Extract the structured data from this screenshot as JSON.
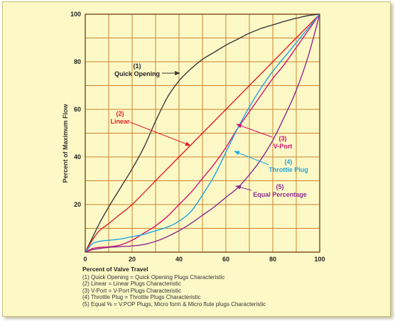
{
  "chart_data": {
    "type": "line",
    "xlabel": "Percent of Valve Travel",
    "ylabel": "Percent of Maximum Flow",
    "xlim": [
      0,
      100
    ],
    "ylim": [
      0,
      100
    ],
    "x_ticks": [
      "0",
      "20",
      "40",
      "60",
      "80",
      "100"
    ],
    "y_ticks": [
      "20",
      "40",
      "60",
      "80",
      "100"
    ],
    "grid": true,
    "grid_step": 10,
    "series": [
      {
        "name": "Quick Opening",
        "annotation_number": "(1)",
        "annotation_label": "Quick Opening",
        "color": "#3a3a3a",
        "x": [
          0,
          3,
          6,
          10,
          15,
          20,
          25,
          30,
          35,
          40,
          45,
          50,
          55,
          60,
          65,
          70,
          75,
          80,
          85,
          90,
          95,
          100
        ],
        "y": [
          0,
          6,
          12,
          19,
          27,
          35,
          44,
          55,
          65,
          72,
          77,
          81,
          84,
          87,
          89.5,
          92,
          94,
          95.5,
          97,
          98.3,
          99.4,
          100
        ]
      },
      {
        "name": "Linear",
        "annotation_number": "(2)",
        "annotation_label": "Linear",
        "color": "#e31f26",
        "x": [
          0,
          3,
          6,
          10,
          15,
          20,
          30,
          40,
          50,
          60,
          70,
          80,
          90,
          100
        ],
        "y": [
          0,
          5,
          9,
          12,
          16,
          20,
          30,
          40,
          50,
          60,
          70,
          80,
          90,
          100
        ]
      },
      {
        "name": "V-Port",
        "annotation_number": "(3)",
        "annotation_label": "V-Port",
        "color": "#d4146f",
        "x": [
          0,
          3,
          6,
          10,
          15,
          20,
          25,
          30,
          35,
          40,
          45,
          50,
          55,
          60,
          65,
          70,
          75,
          80,
          85,
          90,
          95,
          100
        ],
        "y": [
          0,
          1.5,
          2,
          2.2,
          3,
          5,
          8,
          11,
          15,
          20,
          25,
          31,
          37,
          44,
          52,
          59,
          66,
          73,
          79,
          86,
          93,
          100
        ]
      },
      {
        "name": "Throttle Plug",
        "annotation_number": "(4)",
        "annotation_label": "Throttle Plug",
        "color": "#1ea7e0",
        "x": [
          0,
          3,
          6,
          10,
          15,
          20,
          25,
          30,
          35,
          40,
          45,
          50,
          55,
          60,
          65,
          70,
          75,
          80,
          85,
          90,
          95,
          100
        ],
        "y": [
          0,
          3.5,
          4.5,
          5,
          5.5,
          6.5,
          7.5,
          9,
          10.5,
          13,
          17,
          24,
          32,
          42,
          52,
          61,
          69,
          76,
          82,
          88,
          94,
          100
        ]
      },
      {
        "name": "Equal Percentage",
        "annotation_number": "(5)",
        "annotation_label": "Equal Percentage",
        "color": "#8b2a8f",
        "x": [
          0,
          3,
          6,
          10,
          15,
          20,
          25,
          30,
          35,
          40,
          45,
          50,
          55,
          60,
          65,
          70,
          75,
          80,
          85,
          90,
          95,
          100
        ],
        "y": [
          0,
          1,
          1.5,
          2,
          2.3,
          2.6,
          3.2,
          4.5,
          6.5,
          9,
          12,
          15.5,
          19,
          23,
          27,
          32.5,
          39,
          47,
          57,
          68,
          82,
          100
        ]
      }
    ]
  },
  "legend": {
    "title": "Percent of Valve Travel",
    "items": [
      "(1) Quick Opening = Quick Opening Plugs Characteristic",
      "(2) Linear = Linear Plugs Characteristic",
      "(3) V-Port = V-Port Plugs Characteristic",
      "(4) Throttle Plug = Throttle Plugs Characteristic",
      "(5) Equal % = V.POP Plugs, Micro form & Micro flute plugs Characteristic"
    ]
  }
}
